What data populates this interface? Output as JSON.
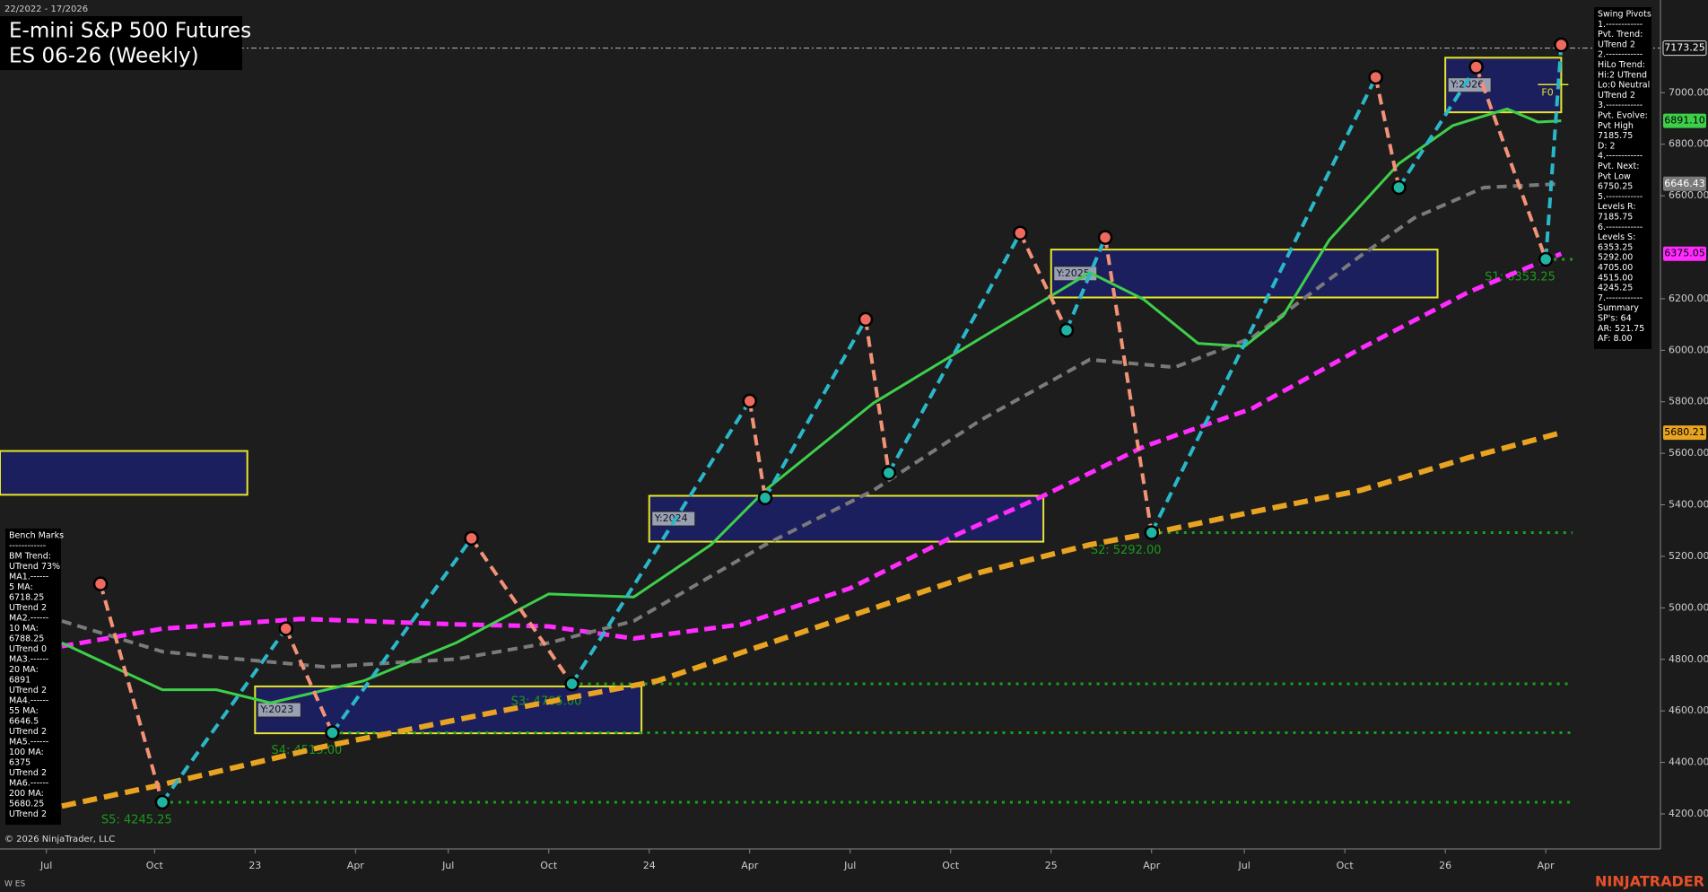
{
  "chart_data": {
    "type": "swing-chart",
    "title": "E-mini S&P 500 Futures",
    "subtitle": "ES 06-26 (Weekly)",
    "range_text": "22/2022 - 17/2026",
    "copyright": "© 2026 NinjaTrader, LLC",
    "instrument_tag": "W ES",
    "brand": "NINJATRADER",
    "xlim": [
      "22/2022",
      "17/2026"
    ],
    "xticks": [
      {
        "value": "28/2022",
        "label": "Jul"
      },
      {
        "value": "42/2022",
        "label": "Oct"
      },
      {
        "value": "3/2023",
        "label": "23"
      },
      {
        "value": "16/2023",
        "label": "Apr"
      },
      {
        "value": "28/2023",
        "label": "Jul"
      },
      {
        "value": "41/2023",
        "label": "Oct"
      },
      {
        "value": "2/2024",
        "label": "24"
      },
      {
        "value": "15/2024",
        "label": "Apr"
      },
      {
        "value": "28/2024",
        "label": "Jul"
      },
      {
        "value": "41/2024",
        "label": "Oct"
      },
      {
        "value": "2/2025",
        "label": "25"
      },
      {
        "value": "15/2025",
        "label": "Apr"
      },
      {
        "value": "27/2025",
        "label": "Jul"
      },
      {
        "value": "40/2025",
        "label": "Oct"
      },
      {
        "value": "1/2026",
        "label": "26"
      },
      {
        "value": "14/2026",
        "label": "Apr"
      }
    ],
    "ylim": [
      4064,
      7360
    ],
    "yticks": [
      {
        "value": 4200,
        "label": "4200.00"
      },
      {
        "value": 4400,
        "label": "4400.00"
      },
      {
        "value": 4600,
        "label": "4600.00"
      },
      {
        "value": 4800,
        "label": "4800.00"
      },
      {
        "value": 5000,
        "label": "5000.00"
      },
      {
        "value": 5200,
        "label": "5200.00"
      },
      {
        "value": 5400,
        "label": "5400.00"
      },
      {
        "value": 5600,
        "label": "5600.00"
      },
      {
        "value": 5800,
        "label": "5800.00"
      },
      {
        "value": 6000,
        "label": "6000.00"
      },
      {
        "value": 6200,
        "label": "6200.00"
      },
      {
        "value": 6600,
        "label": "6600.00"
      },
      {
        "value": 6800,
        "label": "6800.00"
      },
      {
        "value": 7000,
        "label": "7000.00"
      }
    ],
    "last_price": {
      "value": 7173.25,
      "label": "7173.25"
    },
    "series": [
      {
        "color": "#e8a321",
        "style": "dash-heavy",
        "last_label": "5680.21",
        "x": [
          "30/2022",
          "43/2022",
          "12/2023",
          "33/2023",
          "3/2024",
          "24/2024",
          "45/2024",
          "7/2025",
          "16/2025",
          "28/2025",
          "42/2025",
          "4/2026",
          "16/2026"
        ],
        "values": [
          4230,
          4314,
          4462,
          4589,
          4716,
          4928,
          5139,
          5245,
          5296,
          5372,
          5456,
          5583,
          5680.21
        ]
      },
      {
        "color": "#ff2bff",
        "style": "dash-bold",
        "last_label": "6375.05",
        "x": [
          "30/2022",
          "43/2022",
          "9/2023",
          "29/2023",
          "41/2023",
          "52/2023",
          "14/2024",
          "28/2024",
          "42/2024",
          "1/2025",
          "14/2025",
          "28/2025",
          "42/2025",
          "4/2026",
          "16/2026"
        ],
        "values": [
          4851,
          4919,
          4957,
          4936,
          4928,
          4881,
          4936,
          5076,
          5287,
          5435,
          5626,
          5774,
          6006,
          6226,
          6375.05
        ]
      },
      {
        "color": "#7a7a7a",
        "style": "dash",
        "last_label": "6646.43",
        "x": [
          "30/2022",
          "43/2022",
          "50/2022",
          "12/2023",
          "29/2023",
          "41/2023",
          "52/2023",
          "17/2024",
          "31/2024",
          "45/2024",
          "7/2025",
          "18/2025",
          "28/2025",
          "42/2025",
          "49/2025",
          "6/2026",
          "16/2026"
        ],
        "values": [
          4949,
          4830,
          4809,
          4771,
          4801,
          4864,
          4949,
          5245,
          5456,
          5731,
          5964,
          5934,
          6049,
          6366,
          6514,
          6632,
          6646.43
        ]
      },
      {
        "color": "#3ecf4a",
        "style": "solid",
        "last_label": "6891.10",
        "x": [
          "30/2022",
          "43/2022",
          "50/2022",
          "5/2023",
          "17/2023",
          "29/2023",
          "41/2023",
          "52/2023",
          "10/2024",
          "17/2024",
          "31/2024",
          "45/2024",
          "52/2024",
          "7/2025",
          "14/2025",
          "21/2025",
          "27/2025",
          "32/2025",
          "38/2025",
          "47/2025",
          "2/2026",
          "9/2026",
          "13/2026",
          "16/2026"
        ],
        "values": [
          4864,
          4682,
          4682,
          4631,
          4716,
          4864,
          5054,
          5042,
          5245,
          5456,
          5795,
          6049,
          6175,
          6302,
          6197,
          6027,
          6015,
          6133,
          6429,
          6725,
          6873,
          6937,
          6886,
          6891.1
        ]
      }
    ],
    "pivots": {
      "color_up": "#2ab7c9",
      "color_down": "#f29277",
      "high_color": "#ee6a5e",
      "low_color": "#1fb5a3",
      "x": [
        "35/2022",
        "43/2022",
        "7/2023",
        "13/2023",
        "31/2023",
        "44/2023",
        "15/2024",
        "17/2024",
        "30/2024",
        "33/2024",
        "50/2024",
        "4/2025",
        "9/2025",
        "15/2025",
        "44/2025",
        "47/2025",
        "5/2026",
        "14/2026",
        "16/2026"
      ],
      "values": [
        5093,
        4245.25,
        4919,
        4515,
        5270,
        4705,
        5803,
        5427,
        6120,
        5524,
        6455,
        6078,
        6438,
        5292,
        7060,
        6632,
        7100,
        6353.25,
        7185.75
      ]
    },
    "levels": [
      {
        "label": "S5: 4245.25",
        "value": 4245.25,
        "from": "43/2022"
      },
      {
        "label": "S4: 4515.00",
        "value": 4515,
        "from": "13/2023"
      },
      {
        "label": "S3: 4705.00",
        "value": 4705,
        "from": "44/2023"
      },
      {
        "label": "S2: 5292.00",
        "value": 5292,
        "from": "15/2025"
      },
      {
        "label": "S1: 6353.25",
        "value": 6353.25,
        "from": "14/2026"
      }
    ],
    "boxes": [
      {
        "label": null,
        "x": [
          "22/2022",
          "2/2023"
        ],
        "y": [
          5439,
          5609
        ]
      },
      {
        "label": "Y:2023",
        "x": [
          "3/2023",
          "1/2024"
        ],
        "y": [
          4513,
          4695
        ]
      },
      {
        "label": "Y:2024",
        "x": [
          "2/2024",
          "1/2025"
        ],
        "y": [
          5257,
          5435
        ]
      },
      {
        "label": "Y:2025",
        "x": [
          "2/2025",
          "52/2025"
        ],
        "y": [
          6205,
          6391
        ]
      },
      {
        "label": "Y:2026",
        "x": [
          "1/2026",
          "16/2026"
        ],
        "y": [
          6924,
          7136
        ]
      }
    ],
    "fib_label": "F0",
    "swing_panel": [
      "Swing Pivots",
      "1.------------",
      "Pvt. Trend:",
      "UTrend 2",
      "2.------------",
      "HiLo Trend:",
      "Hi:2 UTrend",
      "Lo:0 Neutral",
      "UTrend 2",
      "3.------------",
      "Pvt. Evolve:",
      "Pvt High",
      "7185.75",
      "D: 2",
      "4.------------",
      "Pvt. Next:",
      "Pvt Low",
      "6750.25",
      "5.------------",
      "Levels R:",
      "7185.75",
      "6.------------",
      "Levels S:",
      "6353.25",
      "5292.00",
      "4705.00",
      "4515.00",
      "4245.25",
      "7.------------",
      "Summary",
      "SP's: 64",
      "AR: 521.75",
      "AF: 8.00"
    ],
    "bench_panel": [
      "Bench Marks",
      "------------",
      "BM Trend:",
      "UTrend 73%",
      "MA1.------",
      "5 MA:",
      "6718.25",
      "UTrend 2",
      "MA2.------",
      "10 MA:",
      "6788.25",
      "UTrend 0",
      "MA3.------",
      "20 MA:",
      "6891",
      "UTrend 2",
      "MA4.------",
      "55 MA:",
      "6646.5",
      "UTrend 2",
      "MA5.------",
      "100 MA:",
      "6375",
      "UTrend 2",
      "MA6.------",
      "200 MA:",
      "5680.25",
      "UTrend 2"
    ]
  }
}
